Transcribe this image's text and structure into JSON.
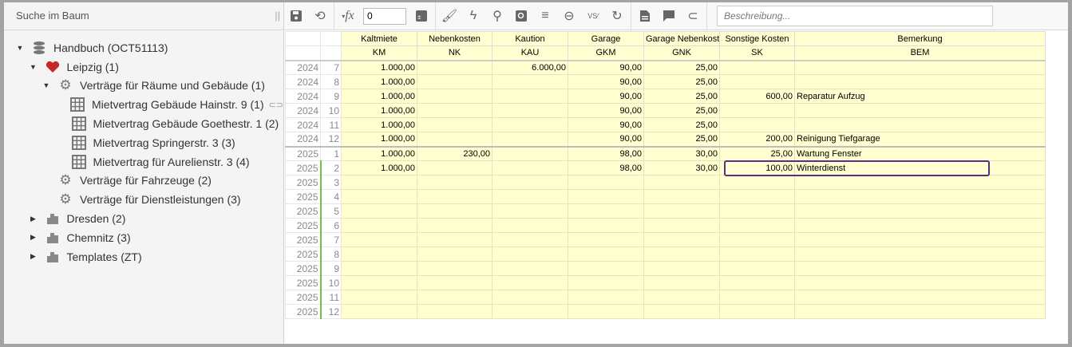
{
  "tree": {
    "search_placeholder": "Suche im Baum",
    "nodes": [
      {
        "label": "Handbuch (OCT51113)",
        "icon": "database-icon",
        "level": 0,
        "toggle": "▼"
      },
      {
        "label": "Leipzig (1)",
        "icon": "heart-icon",
        "level": 1,
        "toggle": "▼"
      },
      {
        "label": "Verträge für Räume und Gebäude (1)",
        "icon": "gear-icon",
        "level": 2,
        "toggle": "▼"
      },
      {
        "label": "Mietvertrag Gebäude Hainstr. 9 (1)",
        "icon": "grid-icon",
        "level": 3,
        "toggle": "",
        "attachment": true
      },
      {
        "label": "Mietvertrag Gebäude Goethestr. 1 (2)",
        "icon": "grid-icon",
        "level": 3,
        "toggle": ""
      },
      {
        "label": "Mietvertrag Springerstr. 3 (3)",
        "icon": "grid-icon",
        "level": 3,
        "toggle": ""
      },
      {
        "label": "Mietvertrag für Aurelienstr. 3 (4)",
        "icon": "grid-icon",
        "level": 3,
        "toggle": ""
      },
      {
        "label": "Verträge für Fahrzeuge (2)",
        "icon": "gear-icon",
        "level": 2,
        "toggle": ""
      },
      {
        "label": "Verträge für Dienstleistungen (3)",
        "icon": "gear-icon",
        "level": 2,
        "toggle": ""
      },
      {
        "label": "Dresden (2)",
        "icon": "city-icon",
        "level": 1,
        "toggle": "▶"
      },
      {
        "label": "Chemnitz (3)",
        "icon": "city-icon",
        "level": 1,
        "toggle": "▶"
      },
      {
        "label": "Templates (ZT)",
        "icon": "city-icon",
        "level": 1,
        "toggle": "▶"
      }
    ]
  },
  "toolbar": {
    "value": "0",
    "description_placeholder": "Beschreibung...",
    "fx_label": "fx",
    "vs_label": "VS"
  },
  "grid": {
    "columns": [
      {
        "name": "Kaltmiete",
        "code": "KM"
      },
      {
        "name": "Nebenkosten",
        "code": "NK"
      },
      {
        "name": "Kaution",
        "code": "KAU"
      },
      {
        "name": "Garage",
        "code": "GKM"
      },
      {
        "name": "Garage Nebenkoste",
        "code": "GNK"
      },
      {
        "name": "Sonstige Kosten",
        "code": "SK"
      },
      {
        "name": "Bemerkung",
        "code": "BEM"
      }
    ],
    "rows": [
      [
        "2024",
        "7",
        "1.000,00",
        "",
        "6.000,00",
        "90,00",
        "25,00",
        "",
        ""
      ],
      [
        "2024",
        "8",
        "1.000,00",
        "",
        "",
        "90,00",
        "25,00",
        "",
        ""
      ],
      [
        "2024",
        "9",
        "1.000,00",
        "",
        "",
        "90,00",
        "25,00",
        "600,00",
        "Reparatur Aufzug"
      ],
      [
        "2024",
        "10",
        "1.000,00",
        "",
        "",
        "90,00",
        "25,00",
        "",
        ""
      ],
      [
        "2024",
        "11",
        "1.000,00",
        "",
        "",
        "90,00",
        "25,00",
        "",
        ""
      ],
      [
        "2024",
        "12",
        "1.000,00",
        "",
        "",
        "90,00",
        "25,00",
        "200,00",
        "Reinigung Tiefgarage"
      ],
      [
        "2025",
        "1",
        "1.000,00",
        "230,00",
        "",
        "98,00",
        "30,00",
        "25,00",
        "Wartung Fenster"
      ],
      [
        "2025",
        "2",
        "1.000,00",
        "",
        "",
        "98,00",
        "30,00",
        "100,00",
        "Winterdienst"
      ],
      [
        "2025",
        "3",
        "",
        "",
        "",
        "",
        "",
        "",
        ""
      ],
      [
        "2025",
        "4",
        "",
        "",
        "",
        "",
        "",
        "",
        ""
      ],
      [
        "2025",
        "5",
        "",
        "",
        "",
        "",
        "",
        "",
        ""
      ],
      [
        "2025",
        "6",
        "",
        "",
        "",
        "",
        "",
        "",
        ""
      ],
      [
        "2025",
        "7",
        "",
        "",
        "",
        "",
        "",
        "",
        ""
      ],
      [
        "2025",
        "8",
        "",
        "",
        "",
        "",
        "",
        "",
        ""
      ],
      [
        "2025",
        "9",
        "",
        "",
        "",
        "",
        "",
        "",
        ""
      ],
      [
        "2025",
        "10",
        "",
        "",
        "",
        "",
        "",
        "",
        ""
      ],
      [
        "2025",
        "11",
        "",
        "",
        "",
        "",
        "",
        "",
        ""
      ],
      [
        "2025",
        "12",
        "",
        "",
        "",
        "",
        "",
        "",
        ""
      ]
    ]
  },
  "colors": {
    "cell": "#ffffd0",
    "selection": "#5b2c83",
    "heart": "#c62828",
    "marker": "#7cc040"
  }
}
